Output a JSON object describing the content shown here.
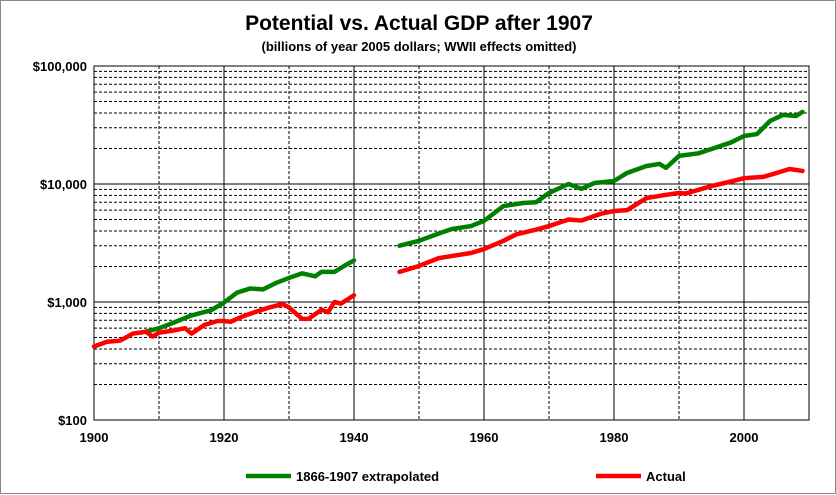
{
  "chart_data": {
    "type": "line",
    "title": "Potential vs. Actual GDP after 1907",
    "subtitle": "(billions of year 2005 dollars; WWII effects omitted)",
    "xlabel": "",
    "ylabel": "",
    "xlim": [
      1900,
      2010
    ],
    "ylim": [
      100,
      100000
    ],
    "yscale": "log",
    "grid": true,
    "legend": "bottom",
    "x_ticks": [
      "1900",
      "1920",
      "1940",
      "1960",
      "1980",
      "2000"
    ],
    "y_ticks": [
      "$100",
      "$1,000",
      "$10,000",
      "$100,000"
    ],
    "series": [
      {
        "name": "1866-1907 extrapolated",
        "color": "#008000",
        "segments": [
          [
            [
              1908,
              560
            ],
            [
              1910,
              600
            ],
            [
              1912,
              660
            ],
            [
              1915,
              770
            ],
            [
              1918,
              850
            ],
            [
              1920,
              990
            ],
            [
              1922,
              1200
            ],
            [
              1924,
              1300
            ],
            [
              1926,
              1280
            ],
            [
              1928,
              1450
            ],
            [
              1930,
              1600
            ],
            [
              1932,
              1750
            ],
            [
              1934,
              1650
            ],
            [
              1935,
              1800
            ],
            [
              1937,
              1800
            ],
            [
              1939,
              2100
            ],
            [
              1940,
              2250
            ]
          ],
          [
            [
              1947,
              3000
            ],
            [
              1950,
              3300
            ],
            [
              1953,
              3800
            ],
            [
              1955,
              4150
            ],
            [
              1958,
              4400
            ],
            [
              1960,
              4870
            ],
            [
              1963,
              6500
            ],
            [
              1966,
              6900
            ],
            [
              1968,
              7000
            ],
            [
              1970,
              8400
            ],
            [
              1973,
              10000
            ],
            [
              1975,
              9100
            ],
            [
              1977,
              10200
            ],
            [
              1980,
              10600
            ],
            [
              1982,
              12400
            ],
            [
              1985,
              14200
            ],
            [
              1987,
              14800
            ],
            [
              1988,
              13700
            ],
            [
              1990,
              17300
            ],
            [
              1993,
              18200
            ],
            [
              1995,
              19800
            ],
            [
              1998,
              22500
            ],
            [
              2000,
              25500
            ],
            [
              2002,
              26500
            ],
            [
              2004,
              34200
            ],
            [
              2006,
              38500
            ],
            [
              2008,
              37700
            ],
            [
              2009,
              40800
            ]
          ]
        ]
      },
      {
        "name": "Actual",
        "color": "#ff0000",
        "segments": [
          [
            [
              1900,
              420
            ],
            [
              1902,
              460
            ],
            [
              1904,
              470
            ],
            [
              1906,
              540
            ],
            [
              1908,
              560
            ],
            [
              1909,
              510
            ],
            [
              1910,
              550
            ],
            [
              1912,
              570
            ],
            [
              1914,
              600
            ],
            [
              1915,
              540
            ],
            [
              1917,
              640
            ],
            [
              1919,
              690
            ],
            [
              1920,
              690
            ],
            [
              1921,
              680
            ],
            [
              1923,
              760
            ],
            [
              1925,
              830
            ],
            [
              1927,
              900
            ],
            [
              1929,
              960
            ],
            [
              1930,
              900
            ],
            [
              1932,
              720
            ],
            [
              1933,
              720
            ],
            [
              1935,
              860
            ],
            [
              1936,
              820
            ],
            [
              1937,
              1000
            ],
            [
              1938,
              970
            ],
            [
              1940,
              1140
            ]
          ],
          [
            [
              1947,
              1800
            ],
            [
              1950,
              2020
            ],
            [
              1953,
              2350
            ],
            [
              1955,
              2450
            ],
            [
              1958,
              2600
            ],
            [
              1960,
              2810
            ],
            [
              1963,
              3300
            ],
            [
              1965,
              3750
            ],
            [
              1968,
              4100
            ],
            [
              1970,
              4400
            ],
            [
              1973,
              5000
            ],
            [
              1975,
              4900
            ],
            [
              1978,
              5600
            ],
            [
              1980,
              5900
            ],
            [
              1982,
              6000
            ],
            [
              1985,
              7600
            ],
            [
              1988,
              8100
            ],
            [
              1990,
              8400
            ],
            [
              1991,
              8300
            ],
            [
              1995,
              9600
            ],
            [
              1998,
              10500
            ],
            [
              2000,
              11200
            ],
            [
              2003,
              11500
            ],
            [
              2005,
              12400
            ],
            [
              2007,
              13400
            ],
            [
              2009,
              12900
            ]
          ]
        ]
      }
    ]
  }
}
